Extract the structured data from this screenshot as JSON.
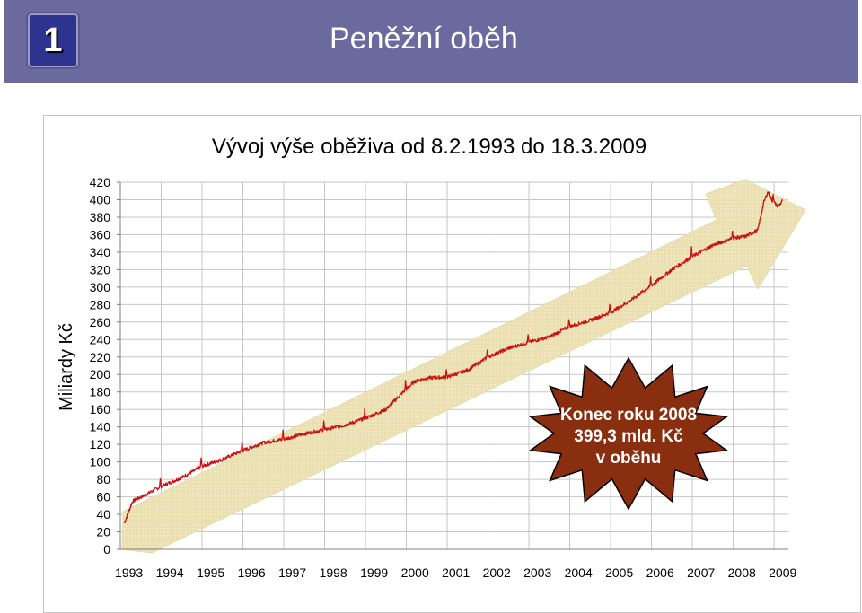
{
  "slide": {
    "badge_number": "1",
    "title": "Peněžní oběh"
  },
  "colors": {
    "banner": "#6a6a9f",
    "badge": "#2e3390",
    "series_line": "#cc1111",
    "arrow_fill": "#f0e6b8",
    "callout_fill": "#8a2e10"
  },
  "chart_data": {
    "type": "line",
    "title": "Vývoj výše oběživa od 8.2.1993 do 18.3.2009",
    "xlabel": "",
    "ylabel": "Miliardy Kč",
    "x_categories": [
      "1993",
      "1994",
      "1995",
      "1996",
      "1997",
      "1998",
      "1999",
      "2000",
      "2001",
      "2002",
      "2003",
      "2004",
      "2005",
      "2006",
      "2007",
      "2008",
      "2009"
    ],
    "ylim": [
      0,
      420
    ],
    "yticks": [
      0,
      20,
      40,
      60,
      80,
      100,
      120,
      140,
      160,
      180,
      200,
      220,
      240,
      260,
      280,
      300,
      320,
      340,
      360,
      380,
      400,
      420
    ],
    "grid": true,
    "series": [
      {
        "x": [
          1993.1,
          1993.3,
          1993.6,
          1994.0,
          1994.5,
          1995.0,
          1995.5,
          1996.0,
          1996.5,
          1997.0,
          1997.5,
          1998.0,
          1998.5,
          1999.0,
          1999.5,
          1999.97,
          2000.2,
          2000.5,
          2001.0,
          2001.5,
          2002.0,
          2002.5,
          2003.0,
          2003.5,
          2004.0,
          2004.5,
          2005.0,
          2005.5,
          2006.0,
          2006.5,
          2007.0,
          2007.5,
          2008.0,
          2008.3,
          2008.6,
          2008.75,
          2008.85,
          2008.95,
          2009.1,
          2009.21
        ],
        "y": [
          30,
          55,
          62,
          72,
          82,
          95,
          103,
          113,
          122,
          126,
          132,
          137,
          142,
          150,
          160,
          182,
          192,
          196,
          197,
          205,
          220,
          230,
          237,
          243,
          255,
          262,
          271,
          285,
          302,
          320,
          335,
          348,
          356,
          358,
          365,
          397,
          409,
          399,
          392,
          399
        ]
      }
    ]
  },
  "callout": {
    "line1": "Konec roku 2008",
    "line2": "399,3 mld. Kč",
    "line3": "v oběhu"
  }
}
